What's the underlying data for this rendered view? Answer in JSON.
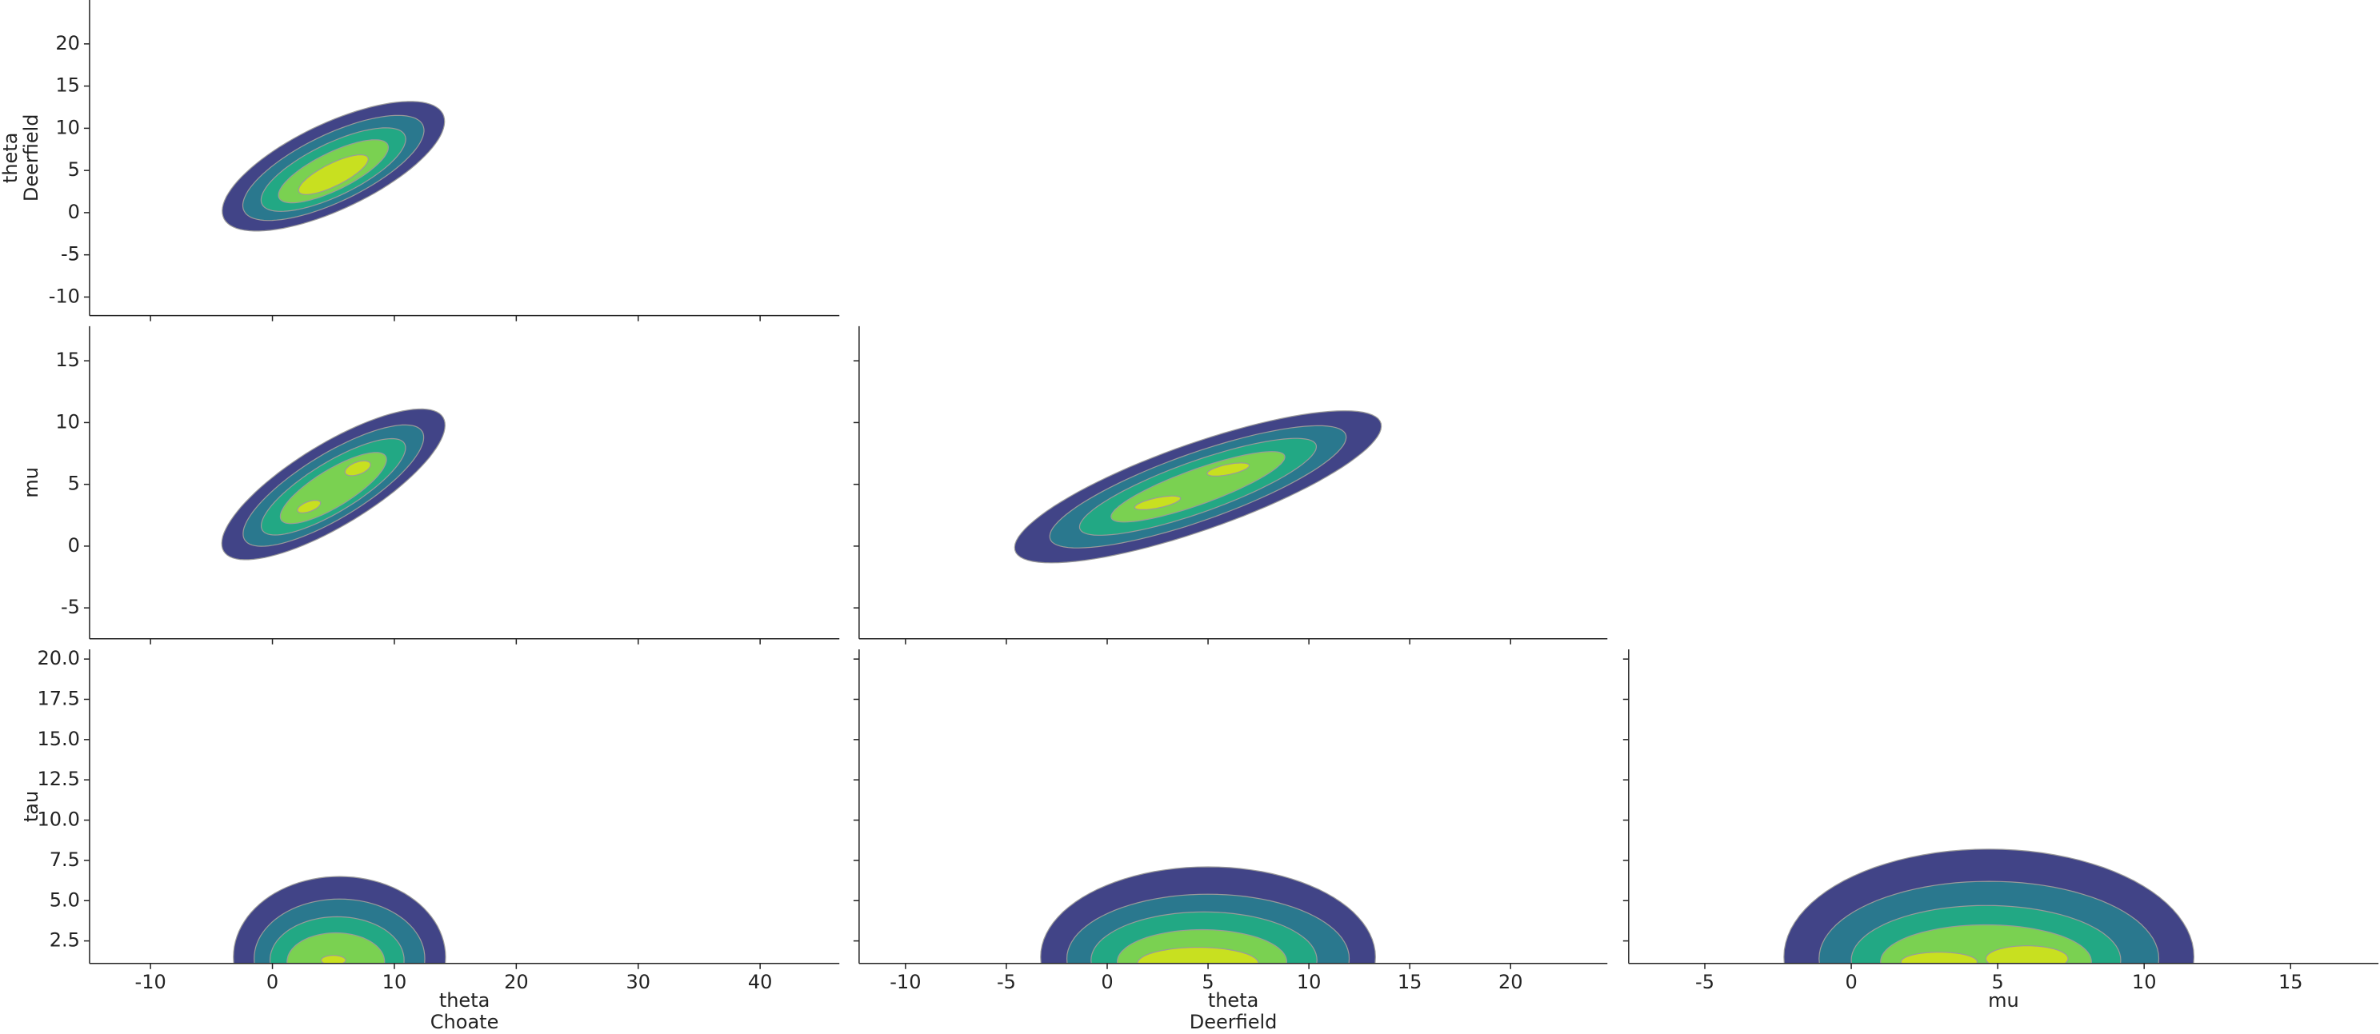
{
  "chart_data": {
    "type": "pair-kde",
    "columns": [
      {
        "label": [
          "theta",
          "Choate"
        ],
        "xlim": [
          -15,
          46.5
        ],
        "xticks": [
          -10,
          0,
          10,
          20,
          30,
          40
        ]
      },
      {
        "label": [
          "theta",
          "Deerfield"
        ],
        "xlim": [
          -12.3,
          24.8
        ],
        "xticks": [
          -10,
          -5,
          0,
          5,
          10,
          15,
          20
        ]
      },
      {
        "label": [
          "mu"
        ],
        "xlim": [
          -7.6,
          18.0
        ],
        "xticks": [
          -5,
          0,
          5,
          10,
          15
        ]
      }
    ],
    "rows": [
      {
        "label": [
          "theta",
          "Deerfield"
        ],
        "ylim": [
          -12.2,
          25.2
        ],
        "yticks": [
          -10,
          -5,
          0,
          5,
          10,
          15,
          20
        ],
        "panels": [
          {
            "contours": [
              {
                "color": "#414487",
                "center": [
                  5,
                  5.5
                ],
                "radii": [
                  11,
                  4.6
                ],
                "angle": 38
              },
              {
                "color": "#2a788e",
                "center": [
                  5,
                  5.3
                ],
                "radii": [
                  9,
                  3.6
                ],
                "angle": 38
              },
              {
                "color": "#22a884",
                "center": [
                  5,
                  5.1
                ],
                "radii": [
                  7.2,
                  2.8
                ],
                "angle": 38
              },
              {
                "color": "#7ad151",
                "center": [
                  5,
                  4.9
                ],
                "radii": [
                  5.5,
                  2
                ],
                "angle": 38
              },
              {
                "color": "#c8e020",
                "center": [
                  5,
                  4.5
                ],
                "radii": [
                  3.5,
                  1.2
                ],
                "angle": 38
              }
            ]
          }
        ]
      },
      {
        "label": [
          "mu"
        ],
        "ylim": [
          -7.5,
          17.8
        ],
        "yticks": [
          -5,
          0,
          5,
          10,
          15
        ],
        "panels": [
          {
            "contours": [
              {
                "color": "#414487",
                "center": [
                  5,
                  5
                ],
                "radii": [
                  10.5,
                  3.3
                ],
                "angle": 31
              },
              {
                "color": "#2a788e",
                "center": [
                  5,
                  4.9
                ],
                "radii": [
                  8.5,
                  2.6
                ],
                "angle": 31
              },
              {
                "color": "#22a884",
                "center": [
                  5,
                  4.8
                ],
                "radii": [
                  6.8,
                  2
                ],
                "angle": 31
              },
              {
                "color": "#7ad151",
                "center": [
                  5,
                  4.7
                ],
                "radii": [
                  5,
                  1.5
                ],
                "angle": 31
              },
              {
                "color": "#c8e020",
                "center": [
                  3,
                  3.2
                ],
                "radii": [
                  1,
                  0.4
                ],
                "angle": 20
              },
              {
                "color": "#c8e020",
                "center": [
                  7,
                  6.3
                ],
                "radii": [
                  1.1,
                  0.5
                ],
                "angle": 20
              }
            ]
          },
          {
            "contours": [
              {
                "color": "#414487",
                "center": [
                  4.5,
                  4.8
                ],
                "radii": [
                  10.5,
                  3.2
                ],
                "angle": 31.7
              },
              {
                "color": "#2a788e",
                "center": [
                  4.5,
                  4.8
                ],
                "radii": [
                  8.5,
                  2.5
                ],
                "angle": 31.7
              },
              {
                "color": "#22a884",
                "center": [
                  4.5,
                  4.8
                ],
                "radii": [
                  6.8,
                  1.9
                ],
                "angle": 31.7
              },
              {
                "color": "#7ad151",
                "center": [
                  4.5,
                  4.8
                ],
                "radii": [
                  5,
                  1.3
                ],
                "angle": 31.7
              },
              {
                "color": "#c8e020",
                "center": [
                  2.5,
                  3.5
                ],
                "radii": [
                  1.2,
                  0.4
                ],
                "angle": 20
              },
              {
                "color": "#c8e020",
                "center": [
                  6,
                  6.2
                ],
                "radii": [
                  1.1,
                  0.4
                ],
                "angle": 20
              }
            ]
          }
        ]
      },
      {
        "label": [
          "tau"
        ],
        "ylim": [
          1.1,
          20.6
        ],
        "yticks": [
          2.5,
          {
            "value": 5,
            "label": "5.0"
          },
          7.5,
          {
            "value": 10,
            "label": "10.0"
          },
          12.5,
          {
            "value": 15,
            "label": "15.0"
          },
          17.5,
          {
            "value": 20,
            "label": "20.0"
          }
        ],
        "panels": [
          {
            "contours": [
              {
                "color": "#414487",
                "center": [
                  5.5,
                  1.5
                ],
                "radii": [
                  8.7,
                  5
                ],
                "angle": 0
              },
              {
                "color": "#2a788e",
                "center": [
                  5.5,
                  1.4
                ],
                "radii": [
                  7,
                  3.7
                ],
                "angle": 0
              },
              {
                "color": "#22a884",
                "center": [
                  5.3,
                  1.3
                ],
                "radii": [
                  5.5,
                  2.7
                ],
                "angle": 0
              },
              {
                "color": "#7ad151",
                "center": [
                  5.2,
                  1.2
                ],
                "radii": [
                  4,
                  1.8
                ],
                "angle": 0
              },
              {
                "color": "#c8e020",
                "center": [
                  5,
                  1.3
                ],
                "radii": [
                  1,
                  0.3
                ],
                "angle": 0
              }
            ]
          },
          {
            "contours": [
              {
                "color": "#414487",
                "center": [
                  5,
                  1.5
                ],
                "radii": [
                  8.3,
                  5.6
                ],
                "angle": 0
              },
              {
                "color": "#2a788e",
                "center": [
                  5,
                  1.4
                ],
                "radii": [
                  7,
                  4
                ],
                "angle": 0
              },
              {
                "color": "#22a884",
                "center": [
                  4.8,
                  1.3
                ],
                "radii": [
                  5.6,
                  3
                ],
                "angle": 0
              },
              {
                "color": "#7ad151",
                "center": [
                  4.7,
                  1.2
                ],
                "radii": [
                  4.2,
                  2
                ],
                "angle": 0
              },
              {
                "color": "#c8e020",
                "center": [
                  4.5,
                  1.1
                ],
                "radii": [
                  3,
                  1
                ],
                "angle": 0
              }
            ]
          },
          {
            "contours": [
              {
                "color": "#414487",
                "center": [
                  4.7,
                  1.5
                ],
                "radii": [
                  7,
                  6.7
                ],
                "angle": 0
              },
              {
                "color": "#2a788e",
                "center": [
                  4.7,
                  1.4
                ],
                "radii": [
                  5.8,
                  4.8
                ],
                "angle": 0
              },
              {
                "color": "#22a884",
                "center": [
                  4.6,
                  1.3
                ],
                "radii": [
                  4.6,
                  3.4
                ],
                "angle": 0
              },
              {
                "color": "#7ad151",
                "center": [
                  4.6,
                  1.2
                ],
                "radii": [
                  3.6,
                  2.3
                ],
                "angle": 0
              },
              {
                "color": "#c8e020",
                "center": [
                  3,
                  1.2
                ],
                "radii": [
                  1.3,
                  0.6
                ],
                "angle": 0
              },
              {
                "color": "#c8e020",
                "center": [
                  6,
                  1.4
                ],
                "radii": [
                  1.4,
                  0.8
                ],
                "angle": 0
              }
            ]
          }
        ]
      }
    ]
  }
}
